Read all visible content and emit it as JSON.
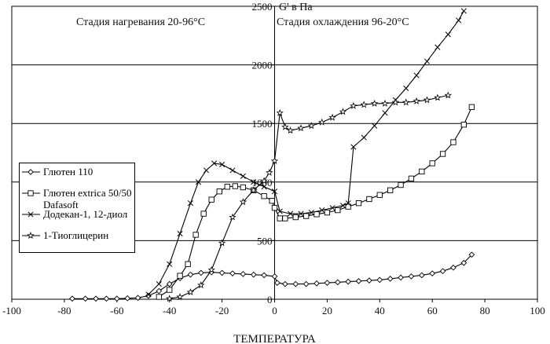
{
  "chart_data": {
    "type": "line",
    "title": "",
    "xlabel": "ТЕМПЕРАТУРА",
    "ylabel": "",
    "xlim": [
      -100,
      100
    ],
    "ylim": [
      0,
      2500
    ],
    "xticks": [
      -100,
      -80,
      -60,
      -40,
      -20,
      0,
      20,
      40,
      60,
      80,
      100
    ],
    "yticks": [
      0,
      500,
      1000,
      1500,
      2000,
      2500
    ],
    "grid": "horizontal",
    "legend_position": "left",
    "annotations": {
      "heating": "Стадия нагревания 20-96°С",
      "modulus": "G' в Па",
      "cooling": "Стадия охлаждения 96-20°С"
    },
    "series": [
      {
        "name": "Глютен 110",
        "marker": "diamond",
        "points": [
          [
            -77,
            5
          ],
          [
            -72,
            5
          ],
          [
            -68,
            5
          ],
          [
            -64,
            5
          ],
          [
            -60,
            5
          ],
          [
            -56,
            8
          ],
          [
            -52,
            12
          ],
          [
            -48,
            30
          ],
          [
            -44,
            70
          ],
          [
            -40,
            130
          ],
          [
            -36,
            180
          ],
          [
            -32,
            210
          ],
          [
            -28,
            225
          ],
          [
            -24,
            230
          ],
          [
            -20,
            225
          ],
          [
            -16,
            220
          ],
          [
            -12,
            215
          ],
          [
            -8,
            210
          ],
          [
            -4,
            205
          ],
          [
            0,
            195
          ],
          [
            1,
            140
          ],
          [
            4,
            130
          ],
          [
            8,
            130
          ],
          [
            12,
            130
          ],
          [
            16,
            135
          ],
          [
            20,
            140
          ],
          [
            24,
            145
          ],
          [
            28,
            150
          ],
          [
            32,
            155
          ],
          [
            36,
            160
          ],
          [
            40,
            165
          ],
          [
            44,
            175
          ],
          [
            48,
            185
          ],
          [
            52,
            195
          ],
          [
            56,
            205
          ],
          [
            60,
            220
          ],
          [
            64,
            240
          ],
          [
            68,
            270
          ],
          [
            72,
            310
          ],
          [
            75,
            380
          ]
        ]
      },
      {
        "name": "Глютен extrica 50/50 Dafasoft",
        "marker": "square",
        "points": [
          [
            -44,
            20
          ],
          [
            -40,
            80
          ],
          [
            -36,
            200
          ],
          [
            -33,
            300
          ],
          [
            -30,
            550
          ],
          [
            -27,
            730
          ],
          [
            -24,
            850
          ],
          [
            -21,
            920
          ],
          [
            -18,
            960
          ],
          [
            -15,
            965
          ],
          [
            -12,
            955
          ],
          [
            -8,
            930
          ],
          [
            -4,
            880
          ],
          [
            -1,
            840
          ],
          [
            0,
            780
          ],
          [
            2,
            690
          ],
          [
            4,
            690
          ],
          [
            8,
            700
          ],
          [
            12,
            710
          ],
          [
            16,
            725
          ],
          [
            20,
            740
          ],
          [
            24,
            760
          ],
          [
            28,
            790
          ],
          [
            32,
            820
          ],
          [
            36,
            855
          ],
          [
            40,
            890
          ],
          [
            44,
            930
          ],
          [
            48,
            975
          ],
          [
            52,
            1030
          ],
          [
            56,
            1090
          ],
          [
            60,
            1160
          ],
          [
            64,
            1240
          ],
          [
            68,
            1340
          ],
          [
            72,
            1490
          ],
          [
            75,
            1640
          ]
        ]
      },
      {
        "name": "Додекан-1, 12-диол",
        "marker": "x",
        "points": [
          [
            -48,
            40
          ],
          [
            -44,
            130
          ],
          [
            -40,
            300
          ],
          [
            -36,
            560
          ],
          [
            -32,
            820
          ],
          [
            -29,
            1000
          ],
          [
            -26,
            1100
          ],
          [
            -23,
            1160
          ],
          [
            -20,
            1150
          ],
          [
            -16,
            1100
          ],
          [
            -12,
            1050
          ],
          [
            -8,
            1000
          ],
          [
            -4,
            960
          ],
          [
            0,
            920
          ],
          [
            2,
            750
          ],
          [
            6,
            730
          ],
          [
            10,
            730
          ],
          [
            14,
            740
          ],
          [
            18,
            760
          ],
          [
            22,
            780
          ],
          [
            26,
            800
          ],
          [
            28,
            820
          ],
          [
            30,
            1300
          ],
          [
            34,
            1380
          ],
          [
            38,
            1480
          ],
          [
            42,
            1590
          ],
          [
            46,
            1700
          ],
          [
            50,
            1800
          ],
          [
            54,
            1910
          ],
          [
            58,
            2030
          ],
          [
            62,
            2150
          ],
          [
            66,
            2260
          ],
          [
            70,
            2380
          ],
          [
            72,
            2460
          ]
        ]
      },
      {
        "name": "1-Тиоглицерин",
        "marker": "star",
        "points": [
          [
            -40,
            5
          ],
          [
            -36,
            20
          ],
          [
            -32,
            60
          ],
          [
            -28,
            120
          ],
          [
            -24,
            250
          ],
          [
            -20,
            480
          ],
          [
            -16,
            700
          ],
          [
            -12,
            830
          ],
          [
            -8,
            930
          ],
          [
            -4,
            1010
          ],
          [
            -2,
            1080
          ],
          [
            0,
            1180
          ],
          [
            2,
            1590
          ],
          [
            4,
            1470
          ],
          [
            6,
            1440
          ],
          [
            10,
            1460
          ],
          [
            14,
            1480
          ],
          [
            18,
            1510
          ],
          [
            22,
            1550
          ],
          [
            26,
            1600
          ],
          [
            30,
            1650
          ],
          [
            34,
            1660
          ],
          [
            38,
            1670
          ],
          [
            42,
            1670
          ],
          [
            46,
            1680
          ],
          [
            50,
            1680
          ],
          [
            54,
            1690
          ],
          [
            58,
            1700
          ],
          [
            62,
            1720
          ],
          [
            66,
            1740
          ]
        ]
      }
    ]
  }
}
